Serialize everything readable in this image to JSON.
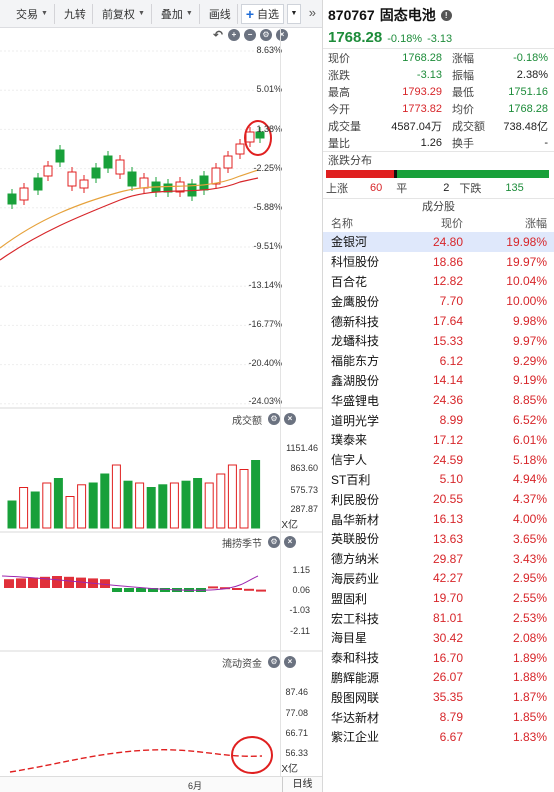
{
  "toolbar": {
    "items": [
      "交易",
      "九转",
      "前复权",
      "叠加",
      "画线"
    ],
    "add_watch": "自选",
    "more": "»"
  },
  "main_chart": {
    "y_labels": [
      "8.63%",
      "5.01%",
      "1.38%",
      "-2.25%",
      "-5.88%",
      "-9.51%",
      "-13.14%",
      "-16.77%",
      "-20.40%",
      "-24.03%"
    ]
  },
  "volume_pane": {
    "title": "成交额",
    "y_labels": [
      "1151.46",
      "863.60",
      "575.73",
      "287.87"
    ],
    "unit": "X亿"
  },
  "season_pane": {
    "title": "捕捞季节",
    "y_labels": [
      "1.15",
      "0.06",
      "-1.03",
      "-2.11"
    ]
  },
  "flow_pane": {
    "title": "流动资金",
    "y_labels": [
      "87.46",
      "77.08",
      "66.71",
      "56.33"
    ],
    "unit": "X亿"
  },
  "bottom": {
    "month": "6月",
    "period": "日线"
  },
  "stock": {
    "code": "870767",
    "name": "固态电池",
    "price": "1768.28",
    "change_pct": "-0.18%",
    "change": "-3.13"
  },
  "stats": [
    {
      "k": "现价",
      "v": "1768.28",
      "vc": "green",
      "k2": "涨幅",
      "v2": "-0.18%",
      "v2c": "green"
    },
    {
      "k": "涨跌",
      "v": "-3.13",
      "vc": "green",
      "k2": "振幅",
      "v2": "2.38%",
      "v2c": "black"
    },
    {
      "k": "最高",
      "v": "1793.29",
      "vc": "red",
      "k2": "最低",
      "v2": "1751.16",
      "v2c": "green"
    },
    {
      "k": "今开",
      "v": "1773.82",
      "vc": "red",
      "k2": "均价",
      "v2": "1768.28",
      "v2c": "green"
    },
    {
      "k": "成交量",
      "v": "4587.04万",
      "vc": "black",
      "k2": "成交额",
      "v2": "738.48亿",
      "v2c": "black"
    },
    {
      "k": "量比",
      "v": "1.26",
      "vc": "black",
      "k2": "换手",
      "v2": "-",
      "v2c": "black"
    }
  ],
  "distribution": {
    "title": "涨跌分布",
    "up_label": "上涨",
    "up": "60",
    "flat_label": "平",
    "flat": "2",
    "down_label": "下跌",
    "down": "135"
  },
  "components": {
    "title": "成分股",
    "headers": [
      "名称",
      "现价",
      "涨幅"
    ],
    "rows": [
      {
        "name": "金银河",
        "price": "24.80",
        "pct": "19.98%"
      },
      {
        "name": "科恒股份",
        "price": "18.86",
        "pct": "19.97%"
      },
      {
        "name": "百合花",
        "price": "12.82",
        "pct": "10.04%"
      },
      {
        "name": "金鹰股份",
        "price": "7.70",
        "pct": "10.00%"
      },
      {
        "name": "德新科技",
        "price": "17.64",
        "pct": "9.98%"
      },
      {
        "name": "龙蟠科技",
        "price": "15.33",
        "pct": "9.97%"
      },
      {
        "name": "福能东方",
        "price": "6.12",
        "pct": "9.29%"
      },
      {
        "name": "鑫湖股份",
        "price": "14.14",
        "pct": "9.19%"
      },
      {
        "name": "华盛锂电",
        "price": "24.36",
        "pct": "8.85%"
      },
      {
        "name": "道明光学",
        "price": "8.99",
        "pct": "6.52%"
      },
      {
        "name": "璞泰来",
        "price": "17.12",
        "pct": "6.01%"
      },
      {
        "name": "信宇人",
        "price": "24.59",
        "pct": "5.18%"
      },
      {
        "name": "ST百利",
        "price": "5.10",
        "pct": "4.94%"
      },
      {
        "name": "利民股份",
        "price": "20.55",
        "pct": "4.37%"
      },
      {
        "name": "晶华新材",
        "price": "16.13",
        "pct": "4.00%"
      },
      {
        "name": "英联股份",
        "price": "13.63",
        "pct": "3.65%"
      },
      {
        "name": "德方纳米",
        "price": "29.87",
        "pct": "3.43%"
      },
      {
        "name": "海辰药业",
        "price": "42.27",
        "pct": "2.95%"
      },
      {
        "name": "盟固利",
        "price": "19.70",
        "pct": "2.55%"
      },
      {
        "name": "宏工科技",
        "price": "81.01",
        "pct": "2.53%"
      },
      {
        "name": "海目星",
        "price": "30.42",
        "pct": "2.08%"
      },
      {
        "name": "泰和科技",
        "price": "16.70",
        "pct": "1.89%"
      },
      {
        "name": "鹏辉能源",
        "price": "26.07",
        "pct": "1.88%"
      },
      {
        "name": "殷图网联",
        "price": "35.35",
        "pct": "1.87%"
      },
      {
        "name": "华达新材",
        "price": "8.79",
        "pct": "1.85%"
      },
      {
        "name": "紫江企业",
        "price": "6.67",
        "pct": "1.83%"
      }
    ]
  },
  "colors": {
    "up": "#e02020",
    "down": "#18a03a",
    "accent": "#1e6bd6"
  }
}
